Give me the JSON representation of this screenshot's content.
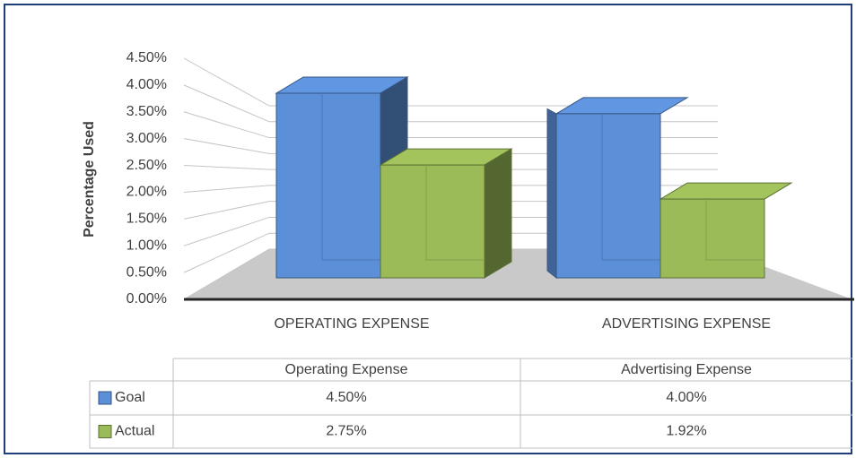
{
  "chart_data": {
    "type": "bar3d",
    "y_axis_title": "Percentage Used",
    "categories": [
      "OPERATING EXPENSE",
      "ADVERTISING EXPENSE"
    ],
    "series": [
      {
        "name": "Goal",
        "color": "#5b8fd7",
        "values": [
          4.5,
          4.0
        ],
        "value_labels": [
          "4.50%",
          "4.00%"
        ]
      },
      {
        "name": "Actual",
        "color": "#9bbb59",
        "values": [
          2.75,
          1.92
        ],
        "value_labels": [
          "2.75%",
          "1.92%"
        ]
      }
    ],
    "ylim": [
      0,
      4.5
    ],
    "yticks": [
      {
        "value": 0,
        "label": "0.00%"
      },
      {
        "value": 0.5,
        "label": "0.50%"
      },
      {
        "value": 1,
        "label": "1.00%"
      },
      {
        "value": 1.5,
        "label": "1.50%"
      },
      {
        "value": 2,
        "label": "2.00%"
      },
      {
        "value": 2.5,
        "label": "2.50%"
      },
      {
        "value": 3,
        "label": "3.00%"
      },
      {
        "value": 3.5,
        "label": "3.50%"
      },
      {
        "value": 4,
        "label": "4.00%"
      },
      {
        "value": 4.5,
        "label": "4.50%"
      }
    ],
    "grid": true,
    "data_table": {
      "columns": [
        "Operating Expense",
        "Advertising Expense"
      ]
    }
  }
}
